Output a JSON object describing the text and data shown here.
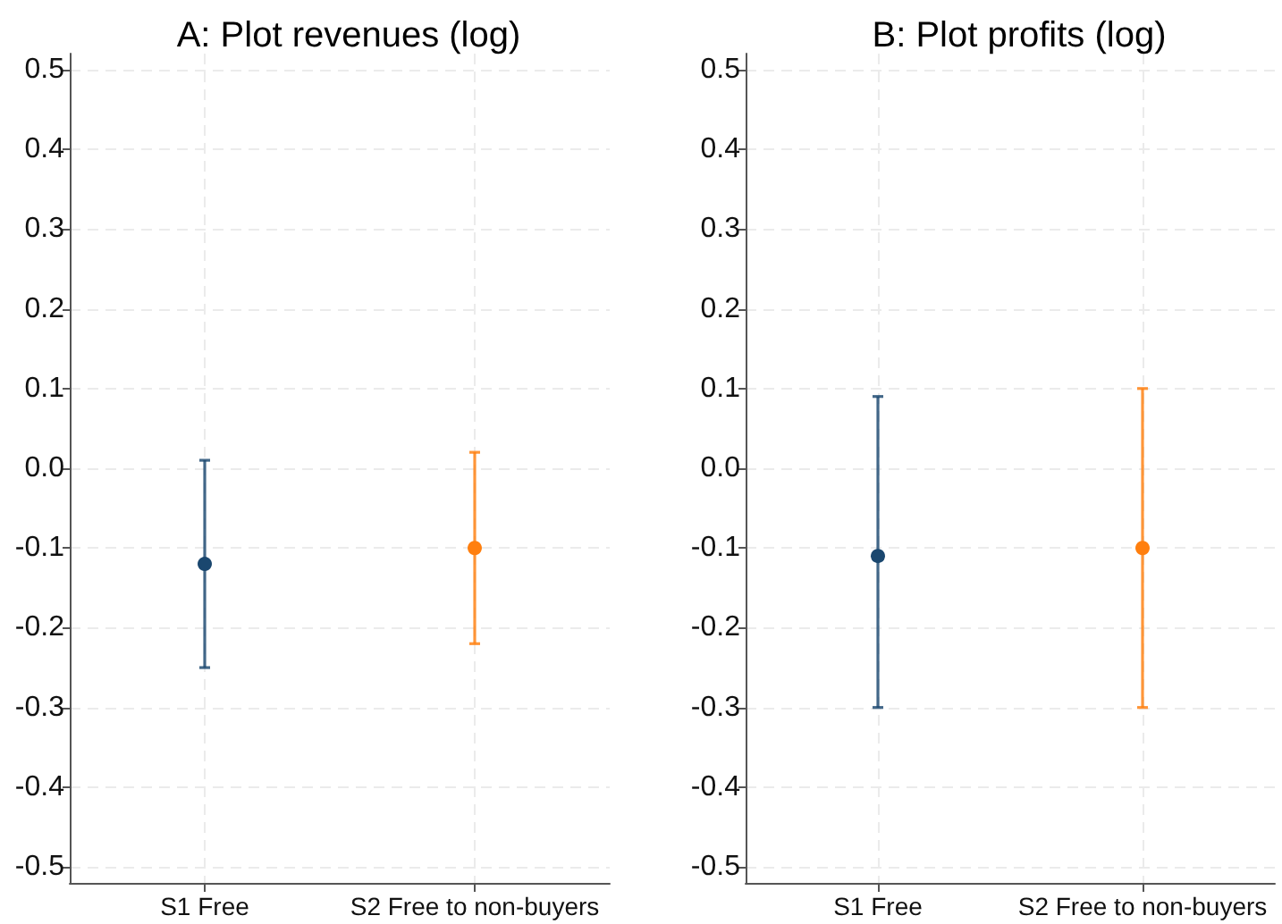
{
  "chart_data": [
    {
      "type": "scatter",
      "title": "A: Plot revenues (log)",
      "categories": [
        "S1 Free",
        "S2 Free to non-buyers"
      ],
      "values": [
        -0.12,
        -0.1
      ],
      "colors": [
        "#1a476f",
        "#ff7f0e"
      ],
      "errors": [
        [
          -0.25,
          0.01
        ],
        [
          -0.22,
          0.02
        ]
      ],
      "ylim": [
        -0.52,
        0.52
      ],
      "yticks": [
        -0.5,
        -0.4,
        -0.3,
        -0.2,
        -0.1,
        {
          "value": 0,
          "label": "0.0"
        },
        0.1,
        0.2,
        0.3,
        0.4,
        0.5
      ],
      "grid": true,
      "marker": "circle"
    },
    {
      "type": "scatter",
      "title": "B: Plot profits (log)",
      "categories": [
        "S1 Free",
        "S2 Free to non-buyers"
      ],
      "values": [
        -0.11,
        -0.1
      ],
      "colors": [
        "#1a476f",
        "#ff7f0e"
      ],
      "errors": [
        [
          -0.3,
          0.09
        ],
        [
          -0.3,
          0.1
        ]
      ],
      "ylim": [
        -0.52,
        0.52
      ],
      "yticks": [
        -0.5,
        -0.4,
        -0.3,
        -0.2,
        -0.1,
        {
          "value": 0,
          "label": "0.0"
        },
        0.1,
        0.2,
        0.3,
        0.4,
        0.5
      ],
      "grid": true,
      "marker": "circle"
    }
  ]
}
